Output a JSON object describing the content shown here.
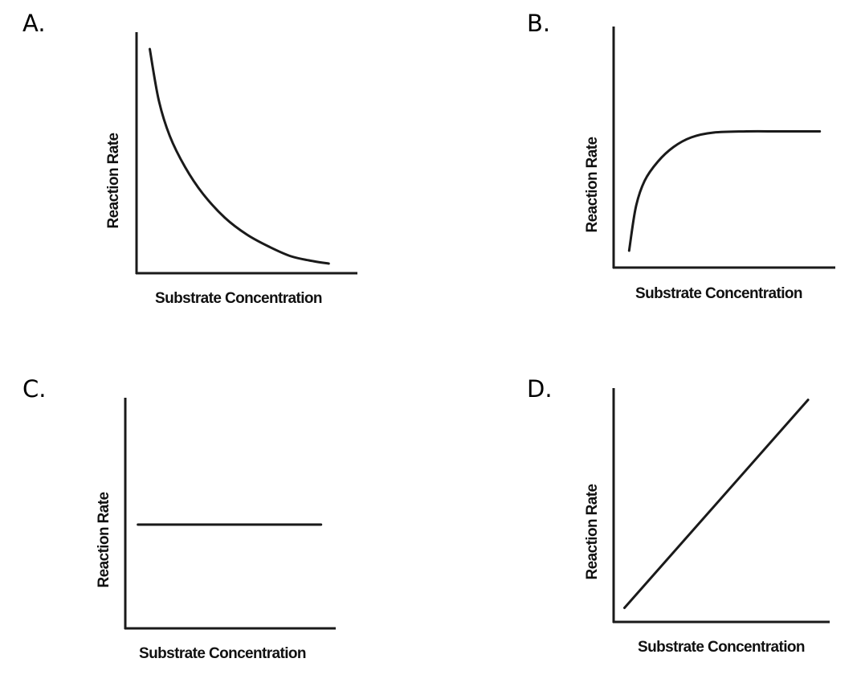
{
  "chart_data": [
    {
      "id": "A",
      "option_label": "A.",
      "type": "line",
      "xlabel": "Substrate Concentration",
      "ylabel": "Reaction Rate",
      "grid": false,
      "legend": "none",
      "xlim": [
        0,
        1
      ],
      "ylim": [
        0,
        1
      ],
      "series": [
        {
          "x": [
            0.06,
            0.1,
            0.15,
            0.22,
            0.3,
            0.4,
            0.5,
            0.6,
            0.7,
            0.8,
            0.87
          ],
          "y": [
            0.93,
            0.72,
            0.57,
            0.44,
            0.33,
            0.23,
            0.16,
            0.11,
            0.07,
            0.05,
            0.04
          ]
        }
      ]
    },
    {
      "id": "B",
      "option_label": "B.",
      "type": "line",
      "xlabel": "Substrate Concentration",
      "ylabel": "Reaction Rate",
      "grid": false,
      "legend": "none",
      "xlim": [
        0,
        1
      ],
      "ylim": [
        0,
        1
      ],
      "series": [
        {
          "x": [
            0.07,
            0.1,
            0.14,
            0.2,
            0.27,
            0.35,
            0.45,
            0.6,
            0.75,
            0.93
          ],
          "y": [
            0.07,
            0.25,
            0.36,
            0.44,
            0.5,
            0.54,
            0.56,
            0.565,
            0.565,
            0.565
          ]
        }
      ]
    },
    {
      "id": "C",
      "option_label": "C.",
      "type": "line",
      "xlabel": "Substrate Concentration",
      "ylabel": "Reaction Rate",
      "grid": false,
      "legend": "none",
      "xlim": [
        0,
        1
      ],
      "ylim": [
        0,
        1
      ],
      "series": [
        {
          "x": [
            0.06,
            0.93
          ],
          "y": [
            0.45,
            0.45
          ]
        }
      ]
    },
    {
      "id": "D",
      "option_label": "D.",
      "type": "line",
      "xlabel": "Substrate Concentration",
      "ylabel": "Reaction Rate",
      "grid": false,
      "legend": "none",
      "xlim": [
        0,
        1
      ],
      "ylim": [
        0,
        1
      ],
      "series": [
        {
          "x": [
            0.05,
            0.9
          ],
          "y": [
            0.06,
            0.95
          ]
        }
      ]
    }
  ]
}
